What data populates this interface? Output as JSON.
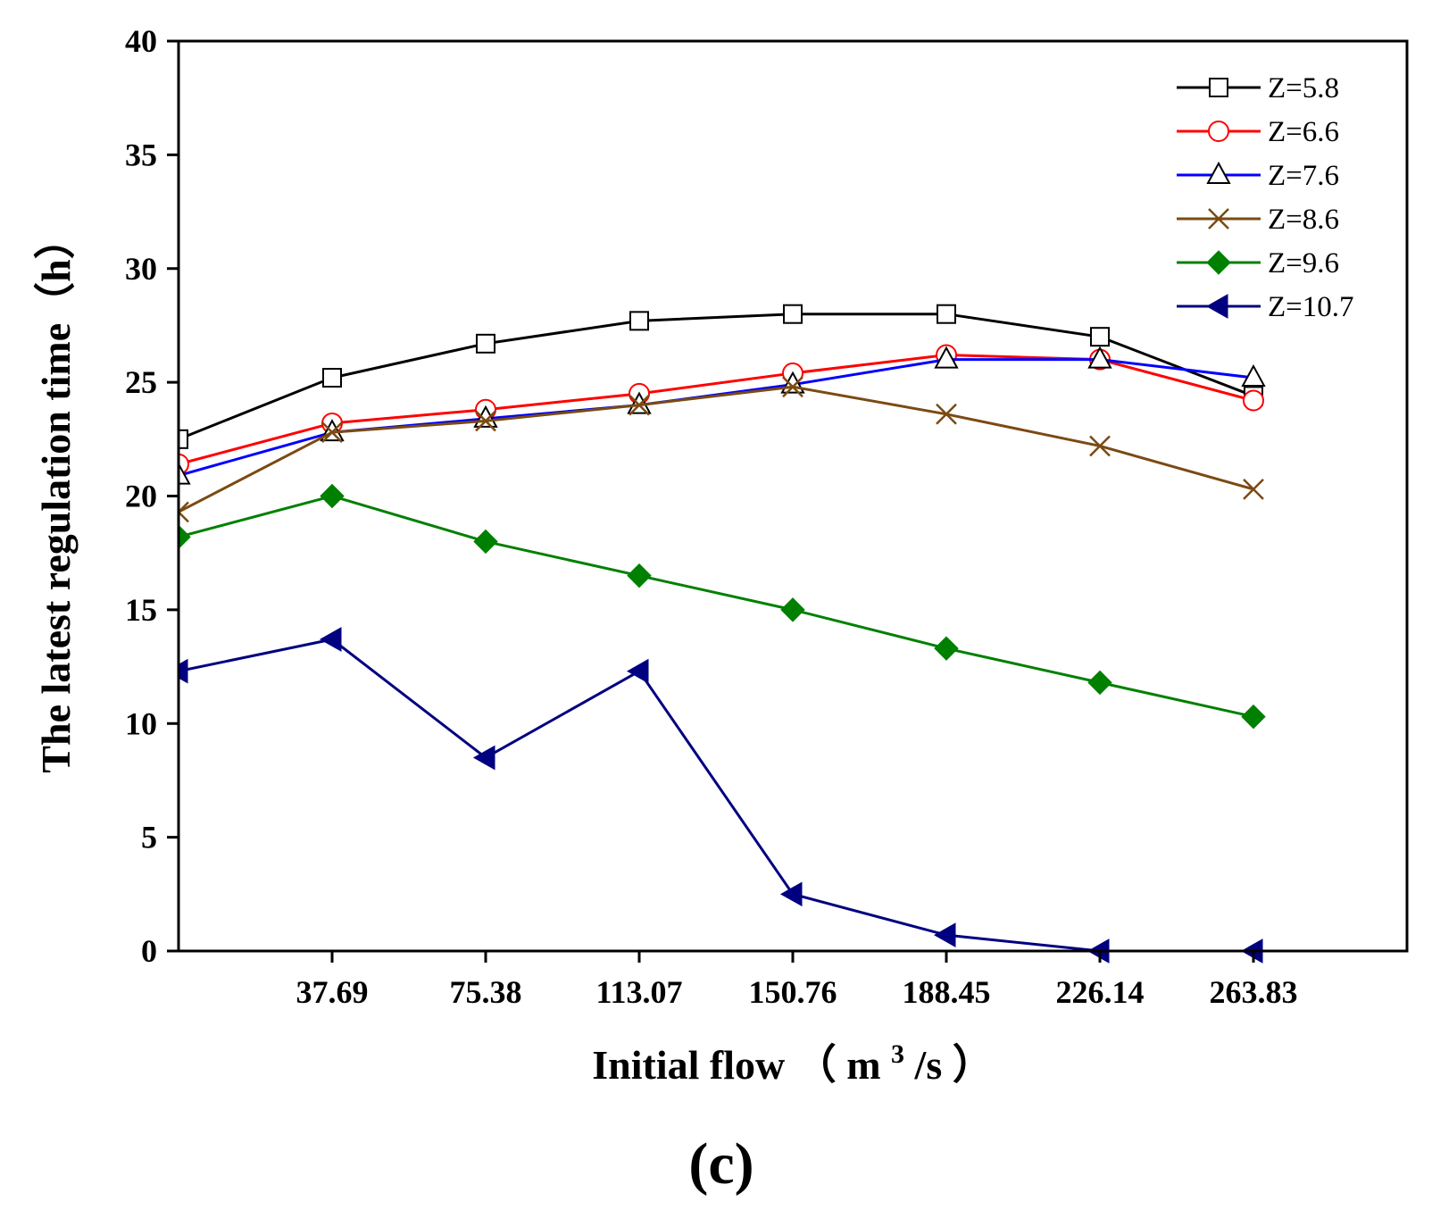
{
  "chart_data": {
    "type": "line",
    "title": "",
    "panel_label": "(c)",
    "xlabel_main": "Initial flow",
    "xlabel_open": "（",
    "xlabel_unit_base": "m",
    "xlabel_unit_sup": "3",
    "xlabel_unit_rest": "/s",
    "xlabel_close": "）",
    "ylabel": "The latest regulation time（h）",
    "xlim": [
      0,
      301.52
    ],
    "ylim": [
      0,
      40
    ],
    "x": [
      0,
      37.69,
      75.38,
      113.07,
      150.76,
      188.45,
      226.14,
      263.83
    ],
    "xticks": [
      37.69,
      75.38,
      113.07,
      150.76,
      188.45,
      226.14,
      263.83
    ],
    "xtick_labels": [
      "37.69",
      "75.38",
      "113.07",
      "150.76",
      "188.45",
      "226.14",
      "263.83"
    ],
    "yticks": [
      0,
      5,
      10,
      15,
      20,
      25,
      30,
      35,
      40
    ],
    "ytick_labels": [
      "0",
      "5",
      "10",
      "15",
      "20",
      "25",
      "30",
      "35",
      "40"
    ],
    "legend_position": "top-right",
    "grid": false,
    "series": [
      {
        "name": "Z=5.8",
        "color": "#000000",
        "marker": "square-open",
        "values": [
          22.5,
          25.2,
          26.7,
          27.7,
          28.0,
          28.0,
          27.0,
          24.4
        ]
      },
      {
        "name": "Z=6.6",
        "color": "#ff0000",
        "marker": "circle-open",
        "values": [
          21.4,
          23.2,
          23.8,
          24.5,
          25.4,
          26.2,
          26.0,
          24.2
        ]
      },
      {
        "name": "Z=7.6",
        "color": "#0000ff",
        "marker": "triangle-open",
        "values": [
          20.9,
          22.8,
          23.4,
          24.0,
          24.9,
          26.0,
          26.0,
          25.2
        ]
      },
      {
        "name": "Z=8.6",
        "color": "#7b4a12",
        "marker": "x",
        "values": [
          19.3,
          22.8,
          23.3,
          24.0,
          24.8,
          23.6,
          22.2,
          20.3
        ]
      },
      {
        "name": "Z=9.6",
        "color": "#008000",
        "marker": "diamond-filled",
        "values": [
          18.2,
          20.0,
          18.0,
          16.5,
          15.0,
          13.3,
          11.8,
          10.3
        ]
      },
      {
        "name": "Z=10.7",
        "color": "#000080",
        "marker": "triangle-left-filled",
        "values": [
          12.3,
          13.7,
          8.5,
          12.3,
          2.5,
          0.7,
          0.0,
          0.0
        ]
      }
    ]
  }
}
